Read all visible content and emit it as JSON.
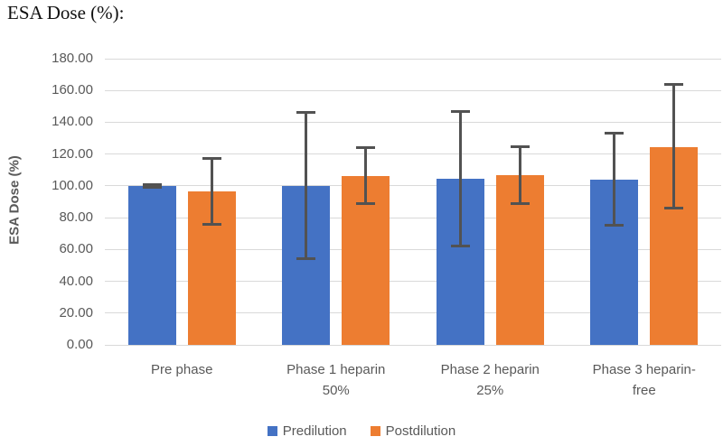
{
  "page_title": "ESA Dose (%):",
  "chart_data": {
    "type": "bar",
    "title": "ESA Dose (%):",
    "xlabel": "",
    "ylabel": "ESA Dose (%)",
    "ylim": [
      0,
      180
    ],
    "ytick_step": 20,
    "ytick_decimals": 2,
    "grid": true,
    "legend_position": "bottom",
    "categories": [
      "Pre phase",
      "Phase 1 heparin 50%",
      "Phase 2 heparin 25%",
      "Phase 3 heparin-free"
    ],
    "series": [
      {
        "name": "Predilution",
        "color": "#4472C4",
        "values": [
          100,
          100,
          104.5,
          104
        ],
        "error_low": [
          99,
          54,
          62,
          75
        ],
        "error_high": [
          101,
          146,
          147,
          133
        ]
      },
      {
        "name": "Postdilution",
        "color": "#ED7D31",
        "values": [
          96.5,
          106,
          106.5,
          124.5
        ],
        "error_low": [
          76,
          89,
          89,
          86
        ],
        "error_high": [
          117.5,
          124,
          124.5,
          164
        ]
      }
    ],
    "error_bar_color": "#525252",
    "gridline_color": "#D9D9D9",
    "tick_label_color": "#595959"
  }
}
